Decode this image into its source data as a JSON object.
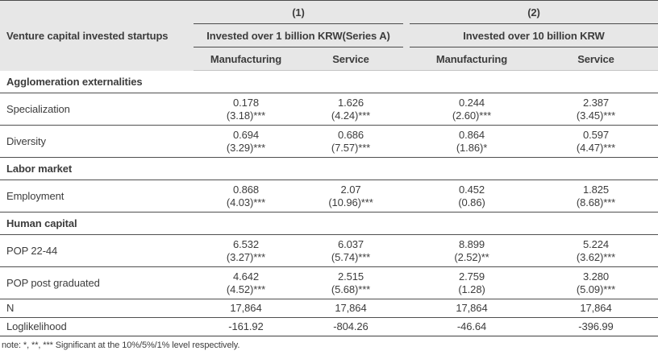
{
  "table": {
    "corner_label": "Venture capital invested startups",
    "groups": [
      {
        "number": "(1)",
        "title": "Invested over 1 billion KRW(Series A)",
        "cols": [
          "Manufacturing",
          "Service"
        ]
      },
      {
        "number": "(2)",
        "title": "Invested over 10 billion KRW",
        "cols": [
          "Manufacturing",
          "Service"
        ]
      }
    ],
    "sections": [
      {
        "header": "Agglomeration externalities",
        "rows": [
          {
            "label": "Specialization",
            "values": [
              [
                "0.178",
                "(3.18)***"
              ],
              [
                "1.626",
                "(4.24)***"
              ],
              [
                "0.244",
                "(2.60)***"
              ],
              [
                "2.387",
                "(3.45)***"
              ]
            ]
          },
          {
            "label": "Diversity",
            "values": [
              [
                "0.694",
                "(3.29)***"
              ],
              [
                "0.686",
                "(7.57)***"
              ],
              [
                "0.864",
                "(1.86)*"
              ],
              [
                "0.597",
                "(4.47)***"
              ]
            ]
          }
        ]
      },
      {
        "header": "Labor market",
        "rows": [
          {
            "label": "Employment",
            "values": [
              [
                "0.868",
                "(4.03)***"
              ],
              [
                "2.07",
                "(10.96)***"
              ],
              [
                "0.452",
                "(0.86)"
              ],
              [
                "1.825",
                "(8.68)***"
              ]
            ]
          }
        ]
      },
      {
        "header": "Human capital",
        "rows": [
          {
            "label": "POP 22-44",
            "values": [
              [
                "6.532",
                "(3.27)***"
              ],
              [
                "6.037",
                "(5.74)***"
              ],
              [
                "8.899",
                "(2.52)**"
              ],
              [
                "5.224",
                "(3.62)***"
              ]
            ]
          },
          {
            "label": "POP post graduated",
            "values": [
              [
                "4.642",
                "(4.52)***"
              ],
              [
                "2.515",
                "(5.68)***"
              ],
              [
                "2.759",
                "(1.28)"
              ],
              [
                "3.280",
                "(5.09)***"
              ]
            ]
          }
        ]
      }
    ],
    "stat_rows": [
      {
        "label": "N",
        "values": [
          "17,864",
          "17,864",
          "17,864",
          "17,864"
        ]
      },
      {
        "label": "Loglikelihood",
        "values": [
          "-161.92",
          "-804.26",
          "-46.64",
          "-396.99"
        ]
      }
    ],
    "note": "note: *, **, *** Significant at the 10%/5%/1% level respectively.",
    "colors": {
      "header_bg": "#e7e7e7",
      "text": "#3c3c3c",
      "rule": "#4b4b4b"
    }
  }
}
